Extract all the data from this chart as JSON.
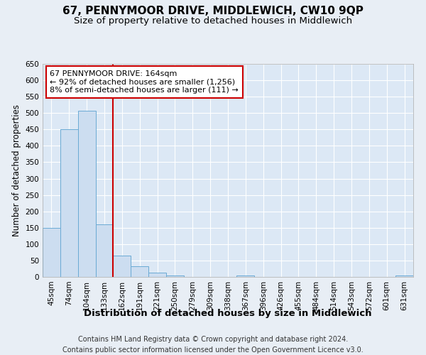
{
  "title": "67, PENNYMOOR DRIVE, MIDDLEWICH, CW10 9QP",
  "subtitle": "Size of property relative to detached houses in Middlewich",
  "xlabel": "Distribution of detached houses by size in Middlewich",
  "ylabel": "Number of detached properties",
  "categories": [
    "45sqm",
    "74sqm",
    "104sqm",
    "133sqm",
    "162sqm",
    "191sqm",
    "221sqm",
    "250sqm",
    "279sqm",
    "309sqm",
    "338sqm",
    "367sqm",
    "396sqm",
    "426sqm",
    "455sqm",
    "484sqm",
    "514sqm",
    "543sqm",
    "572sqm",
    "601sqm",
    "631sqm"
  ],
  "bar_heights": [
    150,
    450,
    508,
    160,
    65,
    32,
    13,
    4,
    0,
    0,
    0,
    4,
    0,
    0,
    0,
    0,
    0,
    0,
    0,
    0,
    4
  ],
  "bar_color": "#ccddf0",
  "bar_edge_color": "#6aaad4",
  "vline_x_index": 4,
  "vline_color": "#cc0000",
  "annotation_line1": "67 PENNYMOOR DRIVE: 164sqm",
  "annotation_line2": "← 92% of detached houses are smaller (1,256)",
  "annotation_line3": "8% of semi-detached houses are larger (111) →",
  "annotation_box_color": "#cc0000",
  "ylim": [
    0,
    650
  ],
  "yticks": [
    0,
    50,
    100,
    150,
    200,
    250,
    300,
    350,
    400,
    450,
    500,
    550,
    600,
    650
  ],
  "background_color": "#e8eef5",
  "plot_background": "#dce8f5",
  "footer": "Contains HM Land Registry data © Crown copyright and database right 2024.\nContains public sector information licensed under the Open Government Licence v3.0.",
  "title_fontsize": 11,
  "subtitle_fontsize": 9.5,
  "xlabel_fontsize": 9.5,
  "ylabel_fontsize": 8.5,
  "tick_fontsize": 7.5,
  "annot_fontsize": 8,
  "footer_fontsize": 7
}
